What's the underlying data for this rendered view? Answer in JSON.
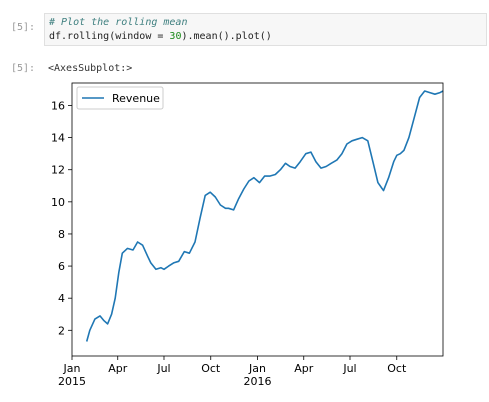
{
  "cell_input": {
    "prompt": "[5]:",
    "comment": "# Plot the rolling mean",
    "code_prefix": "df.rolling(window = ",
    "code_number": "30",
    "code_suffix": ").mean().plot()"
  },
  "cell_output": {
    "prompt": "[5]:",
    "text": "<AxesSubplot:>"
  },
  "colors": {
    "line": "#1f77b4",
    "comment": "#408080",
    "number": "#1a8a1a"
  },
  "chart_data": {
    "type": "line",
    "title": "",
    "xlabel": "",
    "ylabel": "",
    "xlim": [
      "2015-01-01",
      "2016-12-31"
    ],
    "ylim": [
      0.4,
      17.4
    ],
    "yticks": [
      2,
      4,
      6,
      8,
      10,
      12,
      14,
      16
    ],
    "xticks": [
      {
        "date": "2015-01-01",
        "label": "Jan",
        "sublabel": "2015"
      },
      {
        "date": "2015-04-01",
        "label": "Apr",
        "sublabel": ""
      },
      {
        "date": "2015-07-01",
        "label": "Jul",
        "sublabel": ""
      },
      {
        "date": "2015-10-01",
        "label": "Oct",
        "sublabel": ""
      },
      {
        "date": "2016-01-01",
        "label": "Jan",
        "sublabel": "2016"
      },
      {
        "date": "2016-04-01",
        "label": "Apr",
        "sublabel": ""
      },
      {
        "date": "2016-07-01",
        "label": "Jul",
        "sublabel": ""
      },
      {
        "date": "2016-10-01",
        "label": "Oct",
        "sublabel": ""
      }
    ],
    "grid": false,
    "legend": "upper-left",
    "series": [
      {
        "name": "Revenue",
        "x": [
          "2015-01-30",
          "2015-02-05",
          "2015-02-15",
          "2015-02-25",
          "2015-03-05",
          "2015-03-12",
          "2015-03-20",
          "2015-03-27",
          "2015-04-03",
          "2015-04-10",
          "2015-04-20",
          "2015-05-01",
          "2015-05-10",
          "2015-05-20",
          "2015-05-30",
          "2015-06-05",
          "2015-06-15",
          "2015-06-25",
          "2015-07-01",
          "2015-07-10",
          "2015-07-20",
          "2015-07-30",
          "2015-08-10",
          "2015-08-20",
          "2015-08-31",
          "2015-09-10",
          "2015-09-20",
          "2015-09-30",
          "2015-10-10",
          "2015-10-20",
          "2015-10-30",
          "2015-11-05",
          "2015-11-15",
          "2015-11-25",
          "2015-12-05",
          "2015-12-15",
          "2015-12-25",
          "2016-01-05",
          "2016-01-15",
          "2016-01-25",
          "2016-02-05",
          "2016-02-15",
          "2016-02-25",
          "2016-03-05",
          "2016-03-15",
          "2016-03-25",
          "2016-04-05",
          "2016-04-15",
          "2016-04-25",
          "2016-05-05",
          "2016-05-15",
          "2016-05-25",
          "2016-06-05",
          "2016-06-15",
          "2016-06-25",
          "2016-07-05",
          "2016-07-15",
          "2016-07-25",
          "2016-08-05",
          "2016-08-15",
          "2016-08-25",
          "2016-09-05",
          "2016-09-15",
          "2016-09-25",
          "2016-10-01",
          "2016-10-08",
          "2016-10-15",
          "2016-10-25",
          "2016-11-05",
          "2016-11-15",
          "2016-11-25",
          "2016-12-05",
          "2016-12-15",
          "2016-12-25",
          "2016-12-31"
        ],
        "y": [
          1.3,
          2.0,
          2.7,
          2.9,
          2.6,
          2.4,
          3.0,
          4.0,
          5.6,
          6.8,
          7.1,
          7.0,
          7.5,
          7.3,
          6.6,
          6.2,
          5.8,
          5.9,
          5.8,
          6.0,
          6.2,
          6.3,
          6.9,
          6.8,
          7.5,
          9.0,
          10.4,
          10.6,
          10.3,
          9.8,
          9.6,
          9.6,
          9.5,
          10.2,
          10.8,
          11.3,
          11.5,
          11.2,
          11.6,
          11.6,
          11.7,
          12.0,
          12.4,
          12.2,
          12.1,
          12.5,
          13.0,
          13.1,
          12.5,
          12.1,
          12.2,
          12.4,
          12.6,
          13.0,
          13.6,
          13.8,
          13.9,
          14.0,
          13.8,
          12.5,
          11.2,
          10.7,
          11.5,
          12.5,
          12.9,
          13.0,
          13.2,
          14.0,
          15.3,
          16.5,
          16.9,
          16.8,
          16.7,
          16.8,
          16.9
        ]
      }
    ]
  }
}
